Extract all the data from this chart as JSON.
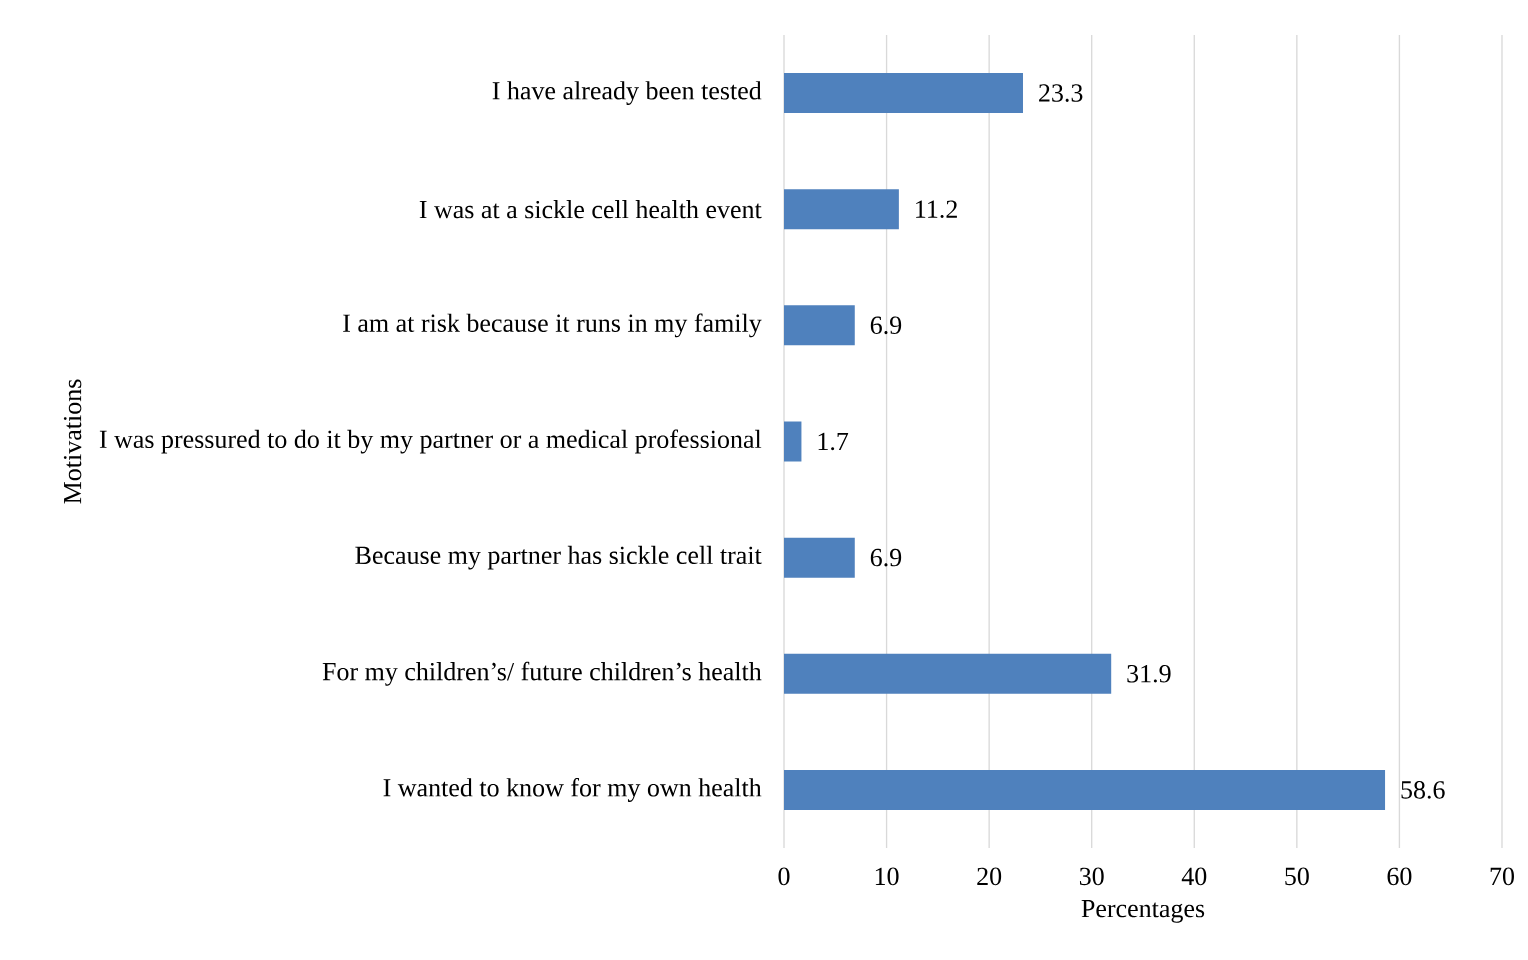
{
  "chart_data": {
    "type": "bar",
    "orientation": "horizontal",
    "xlabel": "Percentages",
    "ylabel": "Motivations",
    "categories": [
      "I have already been tested",
      "I was at a sickle cell health event",
      "I am at risk because it runs in my family",
      "I was pressured to do it by my partner or a medical professional",
      "Because my partner has sickle cell trait",
      "For my children’s/ future children’s health",
      "I wanted to know for my own health"
    ],
    "values": [
      23.3,
      11.2,
      6.9,
      1.7,
      6.9,
      31.9,
      58.6
    ],
    "color": "#4f81bd",
    "xlim": [
      0,
      70
    ],
    "xticks": [
      0,
      10,
      20,
      30,
      40,
      50,
      60,
      70
    ],
    "grid": "x",
    "data_labels": true
  }
}
